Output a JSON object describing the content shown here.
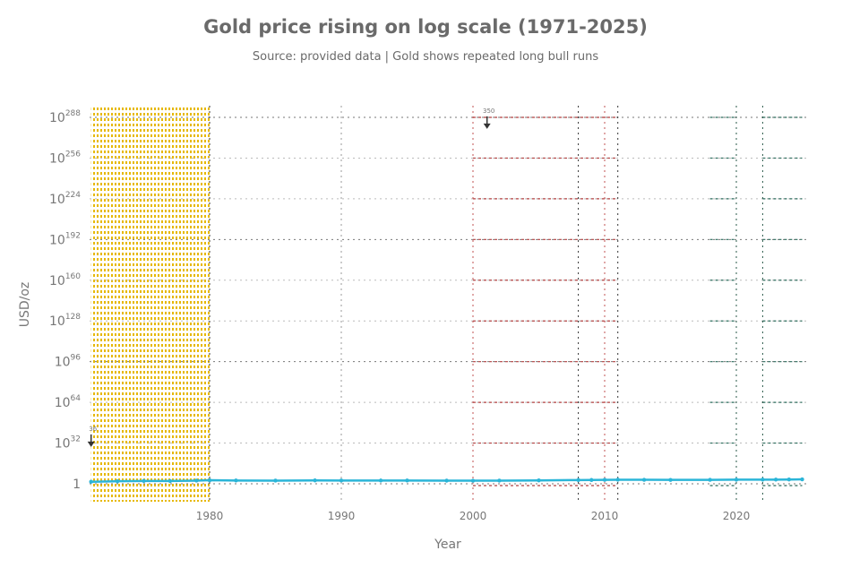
{
  "chart_data": {
    "type": "line",
    "title": "Gold price rising on log scale (1971-2025)",
    "subtitle": "Source: provided data | Gold shows repeated long bull runs",
    "xlabel": "Year",
    "ylabel": "USD/oz",
    "xlim": [
      1971,
      2025
    ],
    "y_scale": "log",
    "y_ticks": [
      {
        "exp": 288,
        "label": "10",
        "sup": "288"
      },
      {
        "exp": 256,
        "label": "10",
        "sup": "256"
      },
      {
        "exp": 224,
        "label": "10",
        "sup": "224"
      },
      {
        "exp": 192,
        "label": "10",
        "sup": "192"
      },
      {
        "exp": 160,
        "label": "10",
        "sup": "160"
      },
      {
        "exp": 128,
        "label": "10",
        "sup": "128"
      },
      {
        "exp": 96,
        "label": "10",
        "sup": "96"
      },
      {
        "exp": 64,
        "label": "10",
        "sup": "64"
      },
      {
        "exp": 32,
        "label": "10",
        "sup": "32"
      },
      {
        "exp": 0,
        "label": "1",
        "sup": ""
      }
    ],
    "x_ticks": [
      "1980",
      "1990",
      "2000",
      "2010",
      "2020"
    ],
    "x_tick_values": [
      1980,
      1990,
      2000,
      2010,
      2020
    ],
    "series": [
      {
        "color": "#2bb5d8",
        "x": [
          1971,
          1973,
          1975,
          1977,
          1979,
          1980,
          1982,
          1985,
          1988,
          1990,
          1993,
          1995,
          1998,
          2000,
          2002,
          2005,
          2008,
          2009,
          2010,
          2011,
          2013,
          2015,
          2018,
          2020,
          2022,
          2023,
          2024,
          2025
        ],
        "y": [
          41,
          97,
          160,
          148,
          307,
          615,
          376,
          317,
          437,
          383,
          360,
          384,
          294,
          279,
          310,
          445,
          872,
          972,
          1225,
          1572,
          1411,
          1160,
          1269,
          1770,
          1800,
          1940,
          2390,
          3000
        ]
      }
    ],
    "shaded_regions": [
      {
        "from": 1971,
        "to": 1980,
        "color": "#e6b800"
      }
    ],
    "vertical_lines": [
      {
        "x": 1980,
        "color": "#333"
      },
      {
        "x": 1990,
        "color": "#999"
      },
      {
        "x": 2000,
        "color": "#c05050"
      },
      {
        "x": 2008,
        "color": "#333"
      },
      {
        "x": 2010,
        "color": "#c05050"
      },
      {
        "x": 2011,
        "color": "#333"
      },
      {
        "x": 2020,
        "color": "#2a5a4a"
      },
      {
        "x": 2022,
        "color": "#2a5a4a"
      }
    ],
    "highlight_segments": [
      {
        "from": 2000,
        "to": 2011,
        "color": "#b04040"
      },
      {
        "from": 2018,
        "to": 2020,
        "color": "#2a6a5a"
      },
      {
        "from": 2022,
        "to": 2025,
        "color": "#2a6a5a"
      }
    ],
    "annotations": [
      {
        "x": 1971,
        "exp": 36,
        "text": "36"
      },
      {
        "x": 2001,
        "exp": 286,
        "text": "350"
      }
    ],
    "grid": true
  }
}
